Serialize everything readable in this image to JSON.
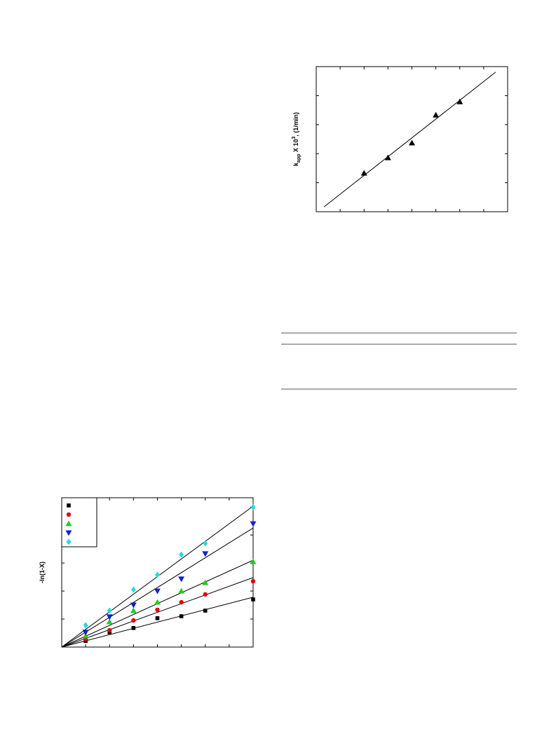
{
  "chart_data": [
    {
      "type": "scatter",
      "y_label": {
        "base": "k",
        "sub": "app",
        "mid": " X 10",
        "sup": "3",
        "unit": ", (1/min)"
      },
      "x": [
        2,
        3,
        4,
        5,
        6
      ],
      "series": [
        {
          "color": "#000000",
          "marker": "triangle",
          "values": [
            1.33,
            1.86,
            2.37,
            3.33,
            3.79
          ],
          "fit_line": {
            "x": [
              0.33,
              7.5
            ],
            "values": [
              0.17,
              4.81
            ]
          }
        }
      ],
      "xlim": [
        0,
        8
      ],
      "ylim": [
        0,
        5
      ],
      "xticks": [
        1,
        2,
        3,
        4,
        5,
        6,
        7
      ],
      "yticks": [
        1,
        2,
        3,
        4
      ]
    },
    {
      "type": "scatter",
      "y_label": "-ln(1-X)",
      "x": [
        1,
        2,
        3,
        4,
        5,
        6,
        8
      ],
      "series": [
        {
          "color": "#000000",
          "marker": "square",
          "values": [
            0.22,
            0.53,
            0.68,
            1.03,
            1.1,
            1.3,
            1.7
          ],
          "fit_line": {
            "x": [
              0,
              8
            ],
            "values": [
              0,
              1.78
            ]
          }
        },
        {
          "color": "#e00000",
          "marker": "circle",
          "values": [
            0.28,
            0.6,
            0.95,
            1.33,
            1.6,
            1.88,
            2.35
          ],
          "fit_line": {
            "x": [
              0,
              8
            ],
            "values": [
              0,
              2.48
            ]
          }
        },
        {
          "color": "#22cc22",
          "marker": "triangle",
          "values": [
            0.4,
            0.9,
            1.3,
            1.6,
            2.0,
            2.3,
            3.05
          ],
          "fit_line": {
            "x": [
              0,
              8
            ],
            "values": [
              0,
              3.1
            ]
          }
        },
        {
          "color": "#1020d0",
          "marker": "triangle-down",
          "values": [
            0.53,
            1.08,
            1.5,
            2.0,
            2.43,
            3.33,
            4.4
          ],
          "fit_line": {
            "x": [
              0,
              8
            ],
            "values": [
              0,
              4.25
            ]
          }
        },
        {
          "color": "#22dddd",
          "marker": "diamond",
          "values": [
            0.78,
            1.3,
            2.05,
            2.58,
            3.3,
            3.7,
            5.0
          ],
          "fit_line": {
            "x": [
              0,
              8
            ],
            "values": [
              0,
              5.03
            ]
          }
        }
      ],
      "legend": true,
      "xlim": [
        0,
        8
      ],
      "ylim": [
        0,
        5.33
      ],
      "xticks": [
        1,
        2,
        3,
        4,
        5,
        6,
        7
      ],
      "yticks": [
        1,
        2,
        3,
        4,
        5
      ]
    }
  ]
}
